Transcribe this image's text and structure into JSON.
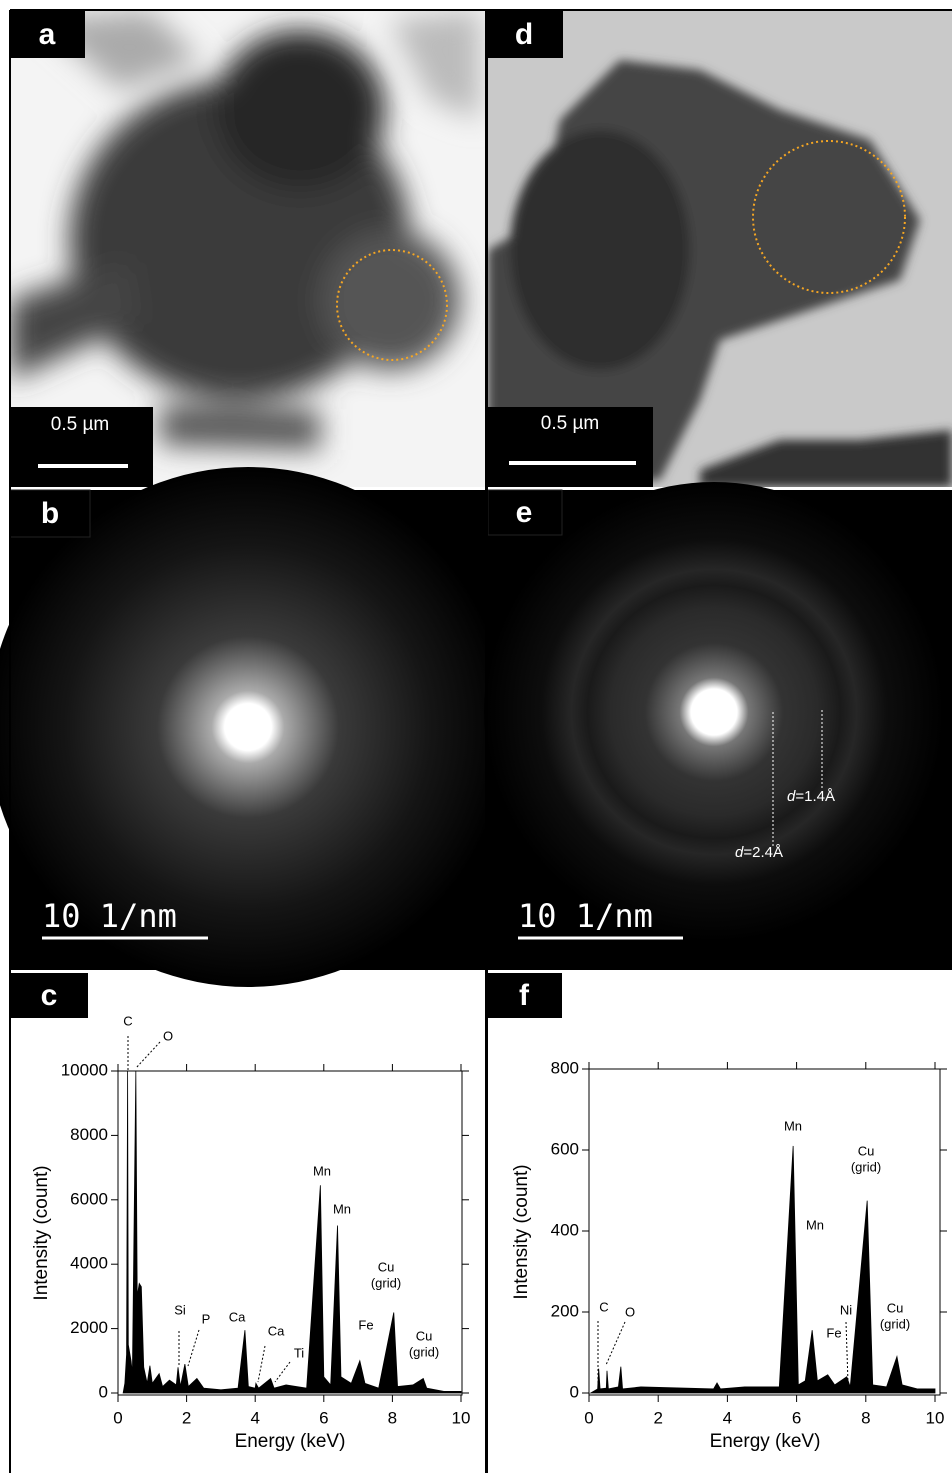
{
  "panels": [
    {
      "label": "a",
      "scale_bar": "0.5 µm"
    },
    {
      "label": "b",
      "scale_bar": "10 1/nm"
    },
    {
      "label": "d",
      "scale_bar": "0.5 µm"
    },
    {
      "label": "e",
      "scale_bar": "10 1/nm",
      "annotations": [
        {
          "symbol": "d",
          "text": "=1.4Å"
        },
        {
          "symbol": "d",
          "text": "=2.4Å"
        }
      ]
    }
  ],
  "chart_data": [
    {
      "type": "area",
      "panel_label": "c",
      "x_label": "Energy (keV)",
      "y_label": "Intensity (count)",
      "color": "#000000",
      "xlim": [
        0,
        10
      ],
      "xticks": [
        0,
        2,
        4,
        6,
        8,
        10
      ],
      "ylim": [
        0,
        10000
      ],
      "yticks": [
        0,
        2000,
        4000,
        6000,
        8000,
        10000
      ],
      "x": [
        0.15,
        0.2,
        0.25,
        0.28,
        0.3,
        0.38,
        0.42,
        0.52,
        0.56,
        0.62,
        0.68,
        0.75,
        0.85,
        0.93,
        1.0,
        1.2,
        1.3,
        1.5,
        1.7,
        1.75,
        1.82,
        1.95,
        2.05,
        2.3,
        2.5,
        3.0,
        3.5,
        3.7,
        3.8,
        4.0,
        4.02,
        4.1,
        4.45,
        4.55,
        4.9,
        5.5,
        5.9,
        6.0,
        6.2,
        6.4,
        6.5,
        6.8,
        7.05,
        7.2,
        7.6,
        8.04,
        8.15,
        8.6,
        8.9,
        9.0,
        9.5,
        10
      ],
      "values": [
        0,
        300,
        1200,
        10000,
        1500,
        1000,
        600,
        10000,
        3000,
        3400,
        3300,
        800,
        300,
        850,
        300,
        600,
        200,
        400,
        250,
        800,
        200,
        900,
        200,
        450,
        150,
        100,
        150,
        1950,
        200,
        150,
        300,
        150,
        450,
        150,
        250,
        150,
        6450,
        500,
        250,
        5200,
        500,
        300,
        1000,
        300,
        150,
        2500,
        200,
        250,
        450,
        150,
        50,
        50
      ],
      "annotations": [
        [
          "C"
        ],
        [
          "O"
        ],
        [
          "Si"
        ],
        [
          "P"
        ],
        [
          "Ca"
        ],
        [
          "Ca"
        ],
        [
          "Ti"
        ],
        [
          "Mn"
        ],
        [
          "Mn"
        ],
        [
          "Fe"
        ],
        [
          "Cu",
          "(grid)"
        ],
        [
          "Cu",
          "(grid)"
        ]
      ]
    },
    {
      "type": "area",
      "panel_label": "f",
      "x_label": "Energy (keV)",
      "y_label": "Intensity (count)",
      "color": "#000000",
      "xlim": [
        0,
        10
      ],
      "xticks": [
        0,
        2,
        4,
        6,
        8,
        10
      ],
      "ylim": [
        0,
        800
      ],
      "yticks": [
        0,
        200,
        400,
        600,
        800
      ],
      "x": [
        0.05,
        0.25,
        0.28,
        0.32,
        0.5,
        0.52,
        0.56,
        0.85,
        0.92,
        0.97,
        1.5,
        3.6,
        3.7,
        3.8,
        4.5,
        5.5,
        5.9,
        6.05,
        6.25,
        6.45,
        6.6,
        6.9,
        7.1,
        7.45,
        7.55,
        8.04,
        8.2,
        8.6,
        8.9,
        9.05,
        9.5,
        10
      ],
      "values": [
        0,
        10,
        60,
        10,
        12,
        55,
        10,
        15,
        65,
        10,
        15,
        10,
        25,
        10,
        15,
        15,
        610,
        20,
        30,
        155,
        30,
        45,
        20,
        40,
        15,
        475,
        20,
        15,
        90,
        20,
        10,
        10
      ],
      "annotations": [
        [
          "C"
        ],
        [
          "O"
        ],
        [
          "Mn"
        ],
        [
          "Mn"
        ],
        [
          "Fe"
        ],
        [
          "Ni"
        ],
        [
          "Cu",
          "(grid)"
        ],
        [
          "Cu",
          "(grid)"
        ]
      ]
    }
  ]
}
